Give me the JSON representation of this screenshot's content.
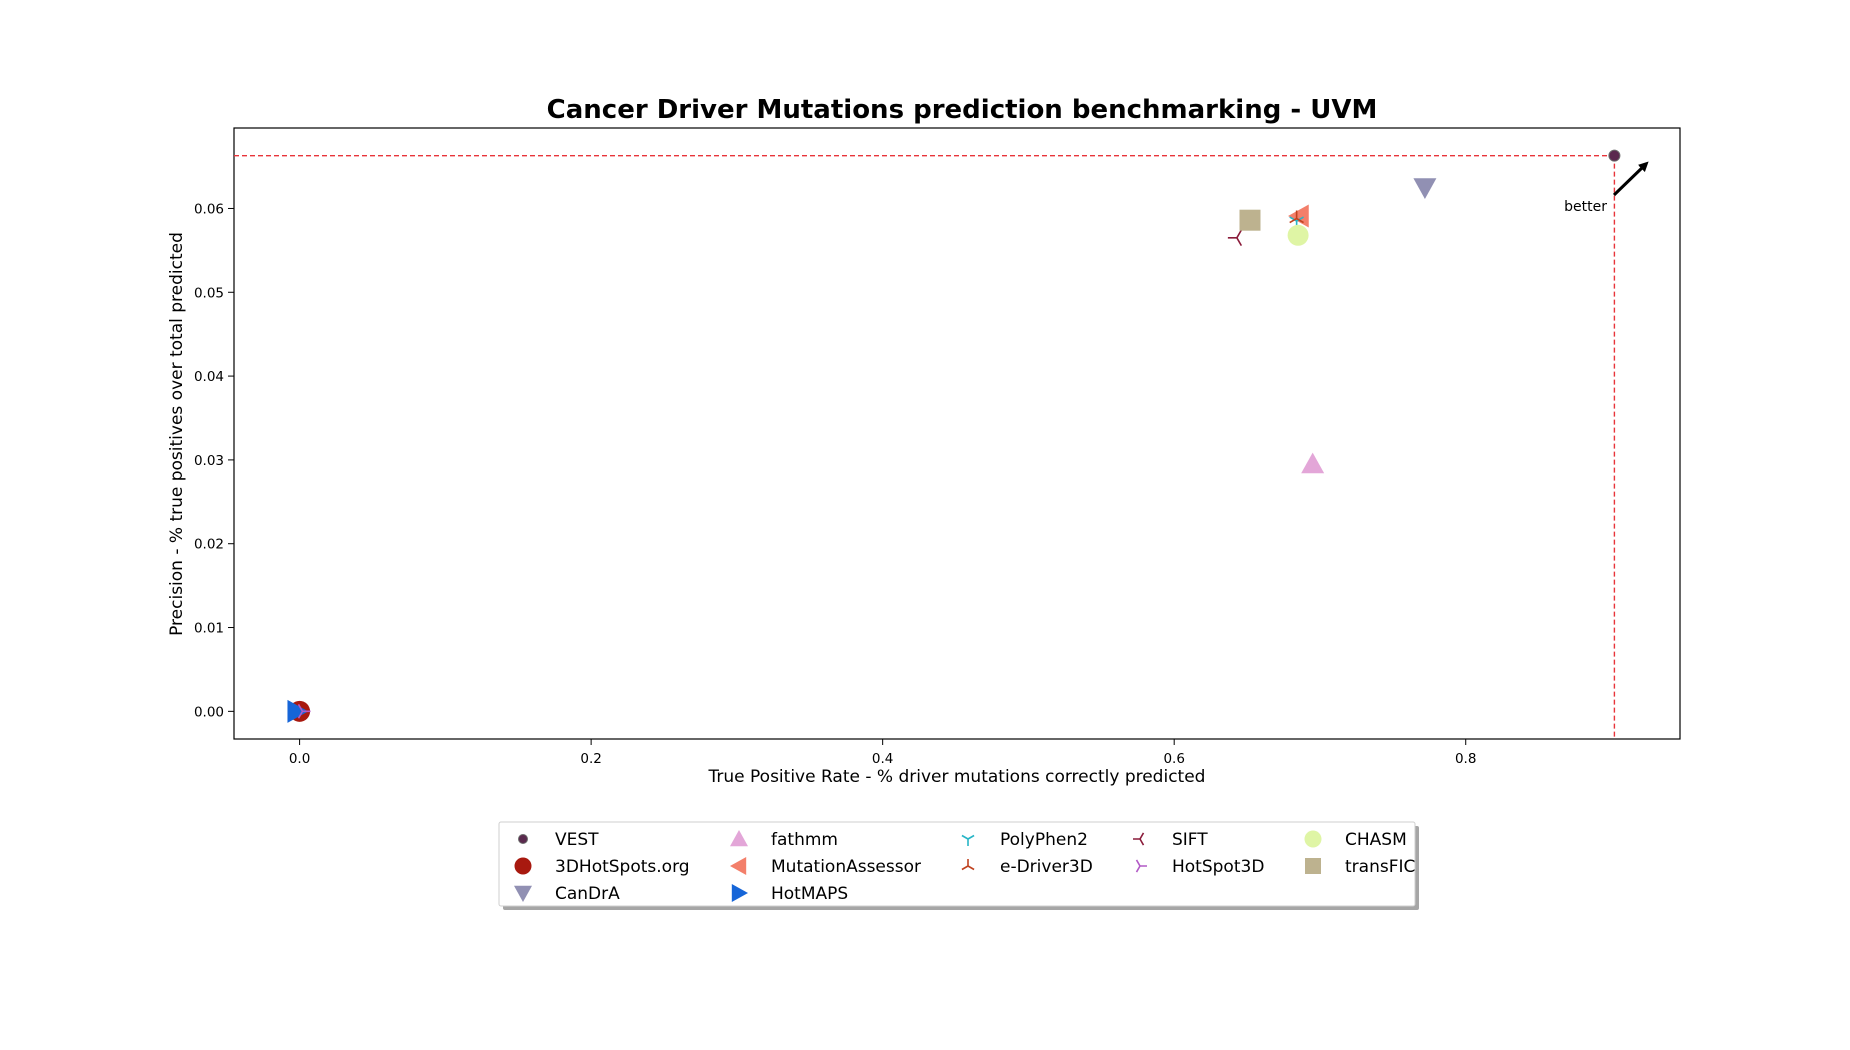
{
  "chart_data": {
    "type": "scatter",
    "title": "Cancer Driver Mutations prediction benchmarking - UVM",
    "xlabel": "True Positive Rate - % driver mutations correctly predicted",
    "ylabel": "Precision - % true positives over total predicted",
    "xlim": [
      -0.045,
      0.947
    ],
    "ylim": [
      -0.0033,
      0.0696
    ],
    "xticks": [
      "0.0",
      "0.2",
      "0.4",
      "0.6",
      "0.8"
    ],
    "yticks": [
      "0.00",
      "0.01",
      "0.02",
      "0.03",
      "0.04",
      "0.05",
      "0.06"
    ],
    "grid": false,
    "legend_position": "bottom-center, below plot",
    "annotation": "better",
    "reference_lines": {
      "x": 0.902,
      "y": 0.0663
    },
    "series": [
      {
        "name": "VEST",
        "x": 0.902,
        "y": 0.0663,
        "marker": "circle-small",
        "color": "#5a2a4e"
      },
      {
        "name": "3DHotSpots.org",
        "x": 0.0,
        "y": 0.0,
        "marker": "circle",
        "color": "#a8190f"
      },
      {
        "name": "CanDrA",
        "x": 0.772,
        "y": 0.0625,
        "marker": "triangle-down",
        "color": "#9190b3"
      },
      {
        "name": "fathmm",
        "x": 0.695,
        "y": 0.0295,
        "marker": "triangle-up",
        "color": "#e3a6d8"
      },
      {
        "name": "MutationAssessor",
        "x": 0.686,
        "y": 0.0591,
        "marker": "triangle-left",
        "color": "#f37f6a"
      },
      {
        "name": "HotMAPS",
        "x": -0.002,
        "y": 0.0,
        "marker": "triangle-right",
        "color": "#1665d8"
      },
      {
        "name": "PolyPhen2",
        "x": 0.684,
        "y": 0.0585,
        "marker": "tri-down",
        "color": "#27b5c6"
      },
      {
        "name": "e-Driver3D",
        "x": 0.684,
        "y": 0.0588,
        "marker": "tri-up",
        "color": "#c0421f"
      },
      {
        "name": "SIFT",
        "x": 0.643,
        "y": 0.0565,
        "marker": "tri-left",
        "color": "#8a1b3a"
      },
      {
        "name": "HotSpot3D",
        "x": 0.002,
        "y": 0.0,
        "marker": "tri-right",
        "color": "#b25ac6"
      },
      {
        "name": "CHASM",
        "x": 0.685,
        "y": 0.0568,
        "marker": "circle",
        "color": "#dff5a5"
      },
      {
        "name": "transFIC",
        "x": 0.652,
        "y": 0.0586,
        "marker": "square",
        "color": "#bdb28f"
      }
    ]
  }
}
